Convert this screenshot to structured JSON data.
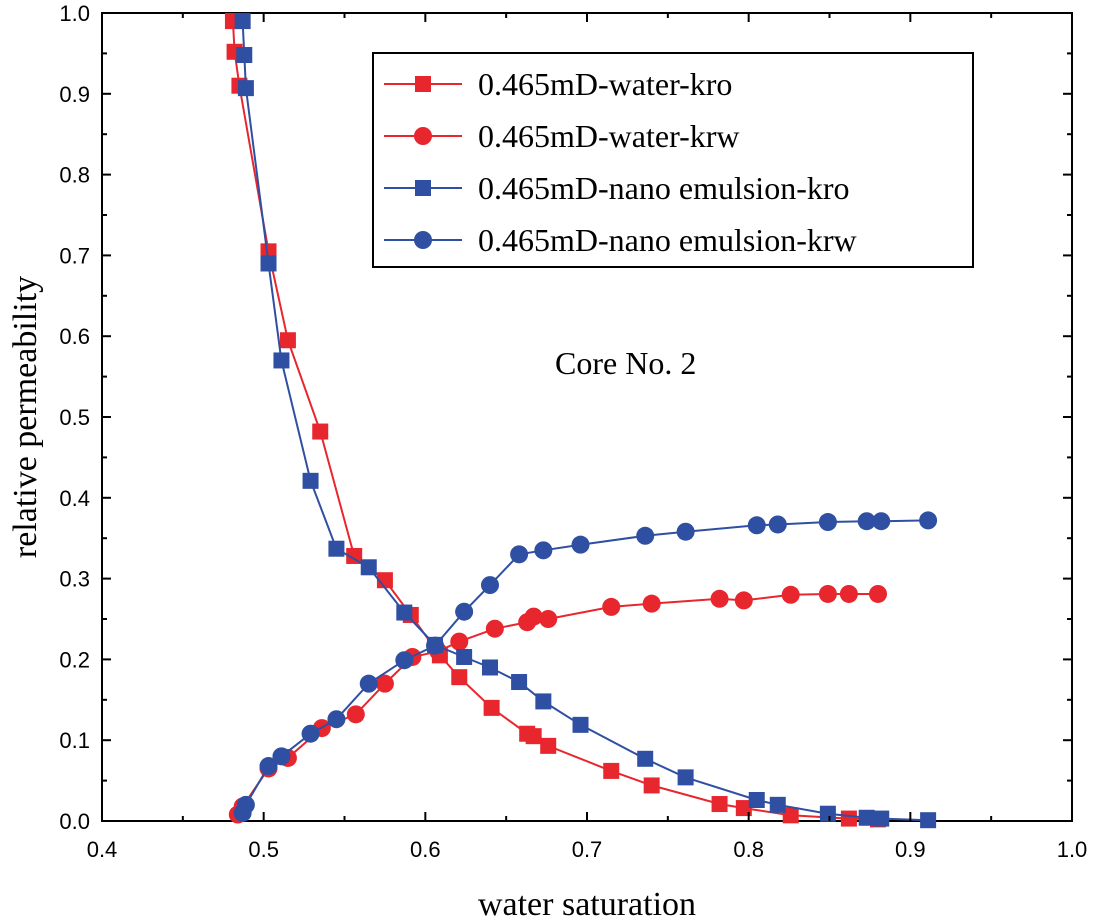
{
  "chart_data": {
    "type": "line",
    "title": "",
    "xlabel": "water saturation",
    "ylabel": "relative permeability",
    "xlim": [
      0.4,
      1.0
    ],
    "ylim": [
      0.0,
      1.0
    ],
    "x_ticks": [
      "0.4",
      "0.5",
      "0.6",
      "0.7",
      "0.8",
      "0.9",
      "1.0"
    ],
    "y_ticks": [
      "0.0",
      "0.1",
      "0.2",
      "0.3",
      "0.4",
      "0.5",
      "0.6",
      "0.7",
      "0.8",
      "0.9",
      "1.0"
    ],
    "grid": false,
    "legend_position": "top-right",
    "annotations": [
      "Core No. 2"
    ],
    "series": [
      {
        "name": "0.465mD-water-kro",
        "color": "#e8262d",
        "marker": "square",
        "x": [
          0.481,
          0.482,
          0.485,
          0.503,
          0.515,
          0.535,
          0.556,
          0.575,
          0.591,
          0.609,
          0.621,
          0.641,
          0.663,
          0.667,
          0.676,
          0.715,
          0.74,
          0.782,
          0.797,
          0.826,
          0.862,
          0.88
        ],
        "y": [
          0.99,
          0.952,
          0.91,
          0.705,
          0.595,
          0.482,
          0.328,
          0.298,
          0.255,
          0.205,
          0.178,
          0.14,
          0.108,
          0.105,
          0.093,
          0.062,
          0.044,
          0.021,
          0.016,
          0.007,
          0.003,
          0.002
        ]
      },
      {
        "name": "0.465mD-water-krw",
        "color": "#e8262d",
        "marker": "circle",
        "x": [
          0.484,
          0.487,
          0.503,
          0.515,
          0.536,
          0.557,
          0.575,
          0.592,
          0.608,
          0.621,
          0.643,
          0.663,
          0.667,
          0.676,
          0.715,
          0.74,
          0.782,
          0.797,
          0.826,
          0.849,
          0.862,
          0.88
        ],
        "y": [
          0.008,
          0.018,
          0.065,
          0.078,
          0.115,
          0.132,
          0.17,
          0.203,
          0.21,
          0.222,
          0.238,
          0.246,
          0.253,
          0.25,
          0.265,
          0.269,
          0.275,
          0.273,
          0.28,
          0.281,
          0.281,
          0.281
        ]
      },
      {
        "name": "0.465mD-nano emulsion-kro",
        "color": "#2f4fa2",
        "marker": "square",
        "x": [
          0.487,
          0.488,
          0.489,
          0.503,
          0.511,
          0.529,
          0.545,
          0.565,
          0.587,
          0.606,
          0.624,
          0.64,
          0.658,
          0.673,
          0.696,
          0.736,
          0.761,
          0.805,
          0.818,
          0.849,
          0.873,
          0.882,
          0.911
        ],
        "y": [
          0.99,
          0.948,
          0.907,
          0.69,
          0.57,
          0.421,
          0.337,
          0.314,
          0.258,
          0.218,
          0.203,
          0.19,
          0.172,
          0.148,
          0.119,
          0.077,
          0.054,
          0.026,
          0.02,
          0.009,
          0.004,
          0.003,
          0.001
        ]
      },
      {
        "name": "0.465mD-nano emulsion-krw",
        "color": "#2f4fa2",
        "marker": "circle",
        "x": [
          0.487,
          0.489,
          0.503,
          0.511,
          0.529,
          0.545,
          0.565,
          0.587,
          0.606,
          0.624,
          0.64,
          0.658,
          0.673,
          0.696,
          0.736,
          0.761,
          0.805,
          0.818,
          0.849,
          0.873,
          0.882,
          0.911
        ],
        "y": [
          0.01,
          0.02,
          0.068,
          0.08,
          0.108,
          0.126,
          0.17,
          0.199,
          0.217,
          0.259,
          0.292,
          0.33,
          0.335,
          0.342,
          0.353,
          0.358,
          0.366,
          0.367,
          0.37,
          0.371,
          0.371,
          0.372
        ]
      }
    ]
  }
}
